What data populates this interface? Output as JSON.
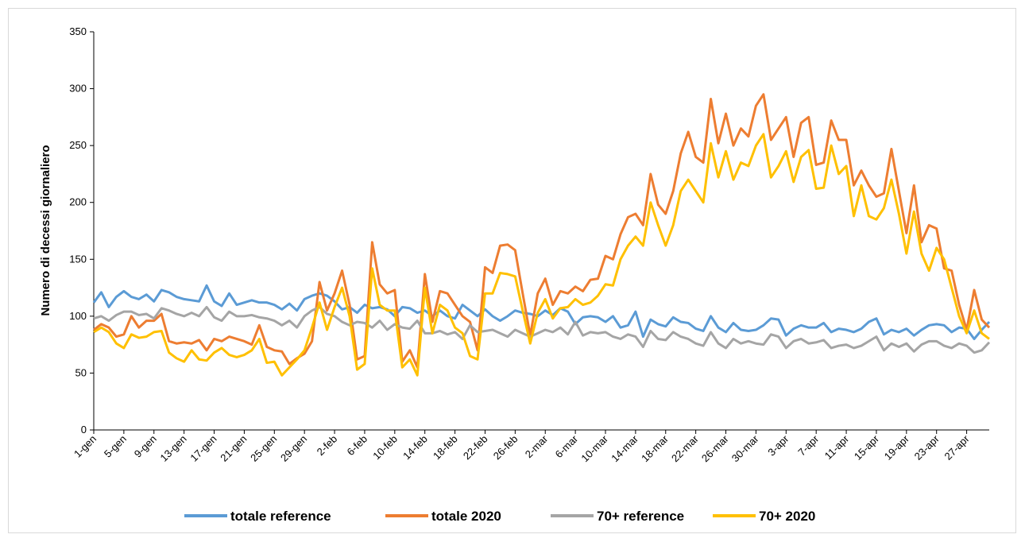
{
  "chart_data": {
    "type": "line",
    "y_label": "Numero di decessi giornaliero",
    "categories": [
      "1-gen",
      null,
      null,
      null,
      "5-gen",
      null,
      null,
      null,
      "9-gen",
      null,
      null,
      null,
      "13-gen",
      null,
      null,
      null,
      "17-gen",
      null,
      null,
      null,
      "21-gen",
      null,
      null,
      null,
      "25-gen",
      null,
      null,
      null,
      "29-gen",
      null,
      null,
      null,
      "2-feb",
      null,
      null,
      null,
      "6-feb",
      null,
      null,
      null,
      "10-feb",
      null,
      null,
      null,
      "14-feb",
      null,
      null,
      null,
      "18-feb",
      null,
      null,
      null,
      "22-feb",
      null,
      null,
      null,
      "26-feb",
      null,
      null,
      null,
      "2-mar",
      null,
      null,
      null,
      "6-mar",
      null,
      null,
      null,
      "10-mar",
      null,
      null,
      null,
      "14-mar",
      null,
      null,
      null,
      "18-mar",
      null,
      null,
      null,
      "22-mar",
      null,
      null,
      null,
      "26-mar",
      null,
      null,
      null,
      "30-mar",
      null,
      null,
      null,
      "3-apr",
      null,
      null,
      null,
      "7-apr",
      null,
      null,
      null,
      "11-apr",
      null,
      null,
      null,
      "15-apr",
      null,
      null,
      null,
      "19-apr",
      null,
      null,
      null,
      "23-apr",
      null,
      null,
      null,
      "27-apr",
      null,
      null,
      null
    ],
    "series": [
      {
        "name": "totale reference",
        "color": "#5b9bd5",
        "values": [
          112,
          121,
          108,
          117,
          122,
          117,
          115,
          119,
          113,
          123,
          121,
          117,
          115,
          114,
          113,
          127,
          113,
          109,
          120,
          110,
          112,
          114,
          112,
          112,
          110,
          106,
          111,
          105,
          115,
          118,
          120,
          118,
          113,
          106,
          108,
          103,
          110,
          107,
          108,
          106,
          100,
          108,
          107,
          103,
          105,
          100,
          105,
          100,
          98,
          110,
          105,
          100,
          106,
          100,
          96,
          100,
          105,
          103,
          102,
          100,
          105,
          101,
          107,
          104,
          93,
          99,
          100,
          99,
          95,
          100,
          90,
          92,
          104,
          82,
          97,
          93,
          91,
          99,
          95,
          94,
          89,
          87,
          100,
          90,
          86,
          94,
          88,
          87,
          88,
          92,
          98,
          97,
          83,
          89,
          92,
          90,
          90,
          94,
          86,
          89,
          88,
          86,
          89,
          95,
          98,
          84,
          88,
          86,
          89,
          83,
          88,
          92,
          93,
          92,
          86,
          90,
          89,
          80,
          88,
          95
        ]
      },
      {
        "name": "totale 2020",
        "color": "#ed7d31",
        "values": [
          88,
          93,
          90,
          82,
          84,
          100,
          90,
          96,
          96,
          102,
          78,
          76,
          77,
          76,
          79,
          70,
          80,
          78,
          82,
          80,
          78,
          75,
          92,
          73,
          70,
          69,
          58,
          63,
          67,
          78,
          130,
          105,
          120,
          140,
          110,
          62,
          65,
          165,
          128,
          120,
          123,
          60,
          70,
          55,
          137,
          95,
          122,
          120,
          110,
          100,
          95,
          70,
          143,
          138,
          162,
          163,
          158,
          120,
          83,
          120,
          133,
          110,
          122,
          120,
          126,
          122,
          132,
          133,
          153,
          150,
          172,
          187,
          190,
          180,
          225,
          198,
          190,
          210,
          243,
          262,
          240,
          235,
          291,
          252,
          278,
          250,
          265,
          258,
          285,
          295,
          255,
          265,
          275,
          240,
          270,
          275,
          233,
          235,
          272,
          255,
          255,
          215,
          228,
          215,
          205,
          208,
          247,
          210,
          173,
          215,
          165,
          180,
          177,
          142,
          140,
          110,
          88,
          123,
          97,
          90
        ]
      },
      {
        "name": "70+ reference",
        "color": "#a5a5a5",
        "values": [
          98,
          100,
          96,
          101,
          104,
          104,
          101,
          102,
          98,
          107,
          105,
          102,
          100,
          103,
          100,
          108,
          99,
          96,
          104,
          100,
          100,
          101,
          99,
          98,
          96,
          92,
          96,
          90,
          100,
          105,
          108,
          102,
          100,
          95,
          92,
          95,
          94,
          90,
          96,
          88,
          93,
          90,
          89,
          96,
          85,
          85,
          87,
          84,
          86,
          80,
          92,
          86,
          87,
          88,
          85,
          82,
          88,
          85,
          82,
          85,
          88,
          86,
          90,
          84,
          95,
          83,
          86,
          85,
          86,
          82,
          80,
          84,
          82,
          73,
          87,
          80,
          79,
          86,
          82,
          80,
          76,
          74,
          86,
          76,
          72,
          80,
          76,
          78,
          76,
          75,
          84,
          82,
          72,
          78,
          80,
          76,
          77,
          79,
          72,
          74,
          75,
          72,
          74,
          78,
          82,
          70,
          76,
          73,
          76,
          69,
          75,
          78,
          78,
          74,
          72,
          76,
          74,
          68,
          70,
          77
        ]
      },
      {
        "name": "70+ 2020",
        "color": "#ffc000",
        "values": [
          86,
          90,
          86,
          76,
          72,
          84,
          81,
          82,
          86,
          87,
          68,
          63,
          60,
          70,
          62,
          61,
          68,
          72,
          66,
          64,
          66,
          70,
          80,
          59,
          60,
          48,
          55,
          62,
          70,
          90,
          112,
          88,
          108,
          125,
          100,
          53,
          58,
          142,
          110,
          105,
          105,
          55,
          62,
          48,
          125,
          85,
          110,
          105,
          90,
          85,
          65,
          62,
          120,
          120,
          138,
          137,
          135,
          105,
          76,
          103,
          115,
          98,
          107,
          108,
          115,
          110,
          112,
          118,
          128,
          127,
          150,
          162,
          170,
          162,
          200,
          180,
          162,
          180,
          210,
          220,
          210,
          200,
          252,
          222,
          245,
          220,
          235,
          232,
          250,
          260,
          222,
          232,
          245,
          218,
          240,
          246,
          212,
          213,
          250,
          225,
          232,
          188,
          215,
          188,
          185,
          195,
          220,
          190,
          155,
          192,
          155,
          140,
          160,
          150,
          125,
          100,
          85,
          105,
          85,
          80
        ]
      }
    ],
    "ylim": [
      0,
      350
    ],
    "yticks": [
      0,
      50,
      100,
      150,
      200,
      250,
      300,
      350
    ],
    "grid": false,
    "legend": "bottom"
  }
}
